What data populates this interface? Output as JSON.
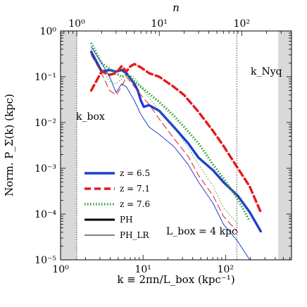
{
  "chart_data": {
    "type": "line",
    "title": "",
    "xlabel": "k ≡ 2πn/L_box (kpc⁻¹)",
    "ylabel": "Norm. P_Σ(k) (kpc)",
    "top_xlabel": "n",
    "xscale": "log",
    "yscale": "log",
    "xlim": [
      1,
      630
    ],
    "ylim": [
      1e-05,
      1
    ],
    "x_ticks": [
      {
        "value": 1,
        "label": "10⁰"
      },
      {
        "value": 10,
        "label": "10¹"
      },
      {
        "value": 100,
        "label": "10²"
      }
    ],
    "y_ticks": [
      {
        "value": 1,
        "label": "10⁰"
      },
      {
        "value": 0.1,
        "label": "10⁻¹"
      },
      {
        "value": 0.01,
        "label": "10⁻²"
      },
      {
        "value": 0.001,
        "label": "10⁻³"
      },
      {
        "value": 0.0001,
        "label": "10⁻⁴"
      },
      {
        "value": 1e-05,
        "label": "10⁻⁵"
      }
    ],
    "top_ticks": [
      {
        "value": 1,
        "label": "10⁰"
      },
      {
        "value": 10,
        "label": "10¹"
      },
      {
        "value": 100,
        "label": "10²"
      }
    ],
    "top_scale_factor": 1.5708,
    "grid": false,
    "legend_position": "lower-left",
    "shaded_regions": [
      {
        "x0": 1,
        "x1": 1.5708,
        "color": "#d9d9d9"
      },
      {
        "x0": 434,
        "x1": 630,
        "color": "#d9d9d9"
      }
    ],
    "vlines": [
      {
        "x": 1.5708,
        "style": "dotted",
        "label": "k_box"
      },
      {
        "x": 137,
        "style": "dotted",
        "label": "k_Nyq"
      }
    ],
    "annotations": [
      {
        "text": "k_box",
        "x": 1.6,
        "y": 0.015
      },
      {
        "text": "k_Nyq",
        "x": 290,
        "y": 0.15
      },
      {
        "text": "L_box = 4 kpc",
        "x": 60,
        "y": 1.5e-05
      }
    ],
    "legend": [
      {
        "label": "z = 6.5",
        "color": "#1f3fcc",
        "style": "solid",
        "width": 3.4
      },
      {
        "label": "z = 7.1",
        "color": "#e41a1c",
        "style": "dashed",
        "width": 3.4
      },
      {
        "label": "z = 7.6",
        "color": "#2ca02c",
        "style": "dotted",
        "width": 3.4
      },
      {
        "label": "PH",
        "color": "#000000",
        "style": "solid",
        "width": 3.0
      },
      {
        "label": "PH_LR",
        "color": "#000000",
        "style": "solid",
        "width": 1.0
      }
    ],
    "series": [
      {
        "color": "#1f3fcc",
        "style": "solid",
        "width": 3.4,
        "x": [
          2.35,
          3.14,
          3.93,
          4.71,
          5.5,
          6.28,
          7.07,
          7.85,
          8.64,
          9.42,
          10.2,
          11.8,
          15.7,
          23.6,
          35.3,
          47.1,
          70.7,
          94.2,
          141,
          196,
          267
        ],
        "y": [
          0.35,
          0.13,
          0.14,
          0.13,
          0.14,
          0.12,
          0.09,
          0.07,
          0.05,
          0.03,
          0.022,
          0.024,
          0.018,
          0.008,
          0.0035,
          0.0017,
          0.0009,
          0.0005,
          0.00025,
          0.00011,
          4.2e-05
        ]
      },
      {
        "color": "#e41a1c",
        "style": "dashed",
        "width": 3.4,
        "x": [
          2.35,
          3.14,
          3.93,
          4.71,
          5.5,
          6.28,
          7.07,
          7.85,
          9.42,
          11.8,
          15.7,
          23.6,
          31.4,
          47.1,
          70.7,
          94.2,
          141,
          196,
          267
        ],
        "y": [
          0.05,
          0.13,
          0.11,
          0.12,
          0.17,
          0.13,
          0.17,
          0.19,
          0.16,
          0.12,
          0.1,
          0.06,
          0.04,
          0.017,
          0.0065,
          0.0031,
          0.001,
          0.0004,
          0.00011
        ]
      },
      {
        "color": "#2ca02c",
        "style": "dotted",
        "width": 3.4,
        "x": [
          2.35,
          3.14,
          3.93,
          4.71,
          5.5,
          6.28,
          7.07,
          7.85,
          9.42,
          11.8,
          15.7,
          23.6,
          31.4,
          47.1,
          70.7,
          94.2,
          141,
          196
        ],
        "y": [
          0.55,
          0.2,
          0.15,
          0.12,
          0.1,
          0.11,
          0.1,
          0.08,
          0.06,
          0.043,
          0.028,
          0.014,
          0.008,
          0.0035,
          0.0012,
          0.0006,
          0.00021,
          7e-05
        ]
      },
      {
        "color": "#1f3fcc",
        "style": "solid",
        "width": 1.0,
        "x": [
          2.35,
          3.14,
          3.93,
          4.71,
          5.5,
          6.28,
          7.85,
          9.42,
          11.8,
          15.7,
          23.6,
          35.3,
          47.1,
          70.7,
          94.2,
          141,
          196
        ],
        "y": [
          0.45,
          0.2,
          0.1,
          0.045,
          0.07,
          0.06,
          0.03,
          0.015,
          0.008,
          0.0055,
          0.003,
          0.0012,
          0.0005,
          0.00017,
          6e-05,
          2.5e-05,
          1e-05
        ]
      },
      {
        "color": "#e41a1c",
        "style": "dashed",
        "width": 1.0,
        "x": [
          2.35,
          3.14,
          3.93,
          4.71,
          5.5,
          6.28,
          7.85,
          9.42,
          11.8,
          15.7,
          23.6,
          35.3,
          47.1,
          70.7,
          94.2,
          141
        ],
        "y": [
          0.3,
          0.12,
          0.05,
          0.04,
          0.06,
          0.1,
          0.06,
          0.04,
          0.025,
          0.012,
          0.0045,
          0.0018,
          0.0007,
          0.00025,
          9e-05,
          4e-05
        ]
      },
      {
        "color": "#2ca02c",
        "style": "dotted",
        "width": 1.0,
        "x": [
          2.35,
          3.14,
          3.93,
          4.71,
          5.5,
          6.28,
          7.85,
          9.42,
          11.8,
          15.7,
          23.6,
          35.3,
          47.1,
          70.7,
          94.2,
          141
        ],
        "y": [
          0.4,
          0.15,
          0.08,
          0.07,
          0.09,
          0.11,
          0.1,
          0.06,
          0.035,
          0.018,
          0.008,
          0.0028,
          0.0012,
          0.0004,
          0.00014,
          6e-05
        ]
      }
    ]
  }
}
